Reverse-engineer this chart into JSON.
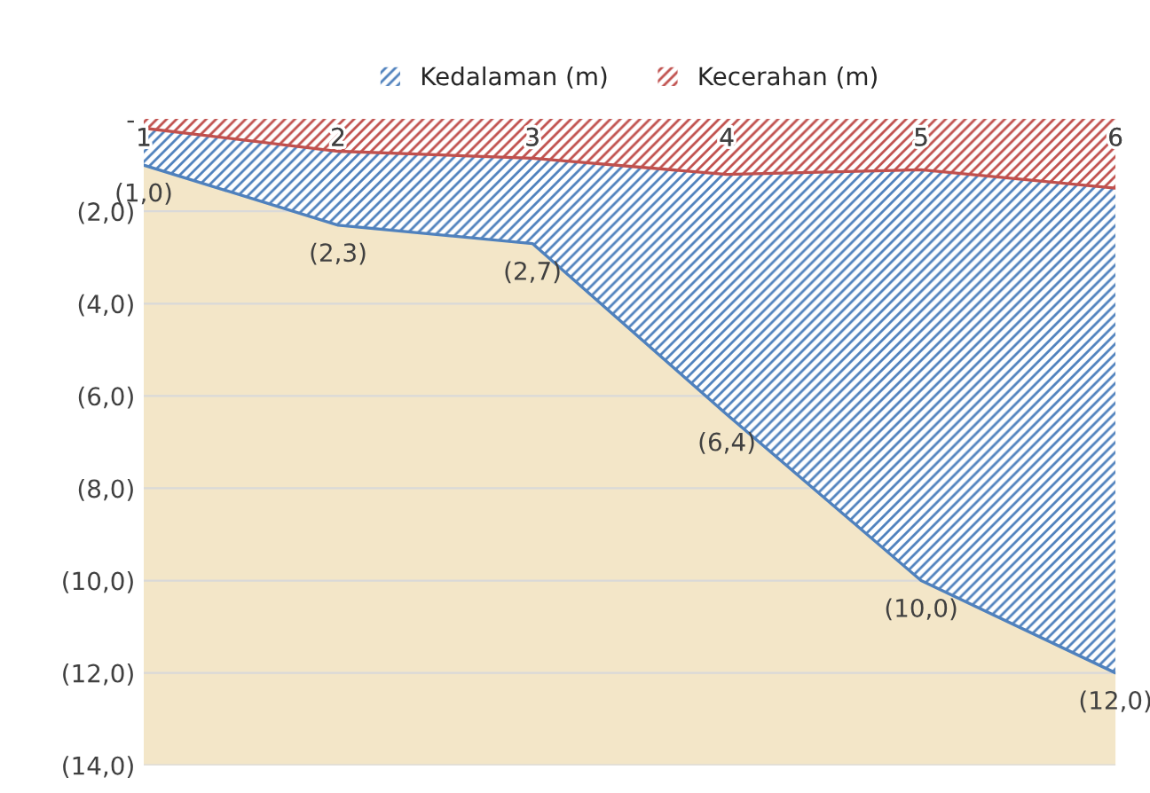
{
  "chart_data": {
    "type": "area",
    "categories": [
      "1",
      "2",
      "3",
      "4",
      "5",
      "6"
    ],
    "series": [
      {
        "name": "Kedalaman (m)",
        "color": "#4f81bd",
        "values": [
          -1.0,
          -2.3,
          -2.7,
          -6.4,
          -10.0,
          -12.0
        ],
        "value_labels": [
          "(1,0)",
          "(2,3)",
          "(2,7)",
          "(6,4)",
          "(10,0)",
          "(12,0)"
        ]
      },
      {
        "name": "Kecerahan (m)",
        "color": "#c0504d",
        "values": [
          -0.2,
          -0.7,
          -0.85,
          -1.2,
          -1.1,
          -1.5
        ]
      }
    ],
    "ylim": [
      -14,
      0
    ],
    "yticks": [
      {
        "value": -14,
        "label": "(14,0)"
      },
      {
        "value": -12,
        "label": "(12,0)"
      },
      {
        "value": -10,
        "label": "(10,0)"
      },
      {
        "value": -8,
        "label": "(8,0)"
      },
      {
        "value": -6,
        "label": "(6,0)"
      },
      {
        "value": -4,
        "label": "(4,0)"
      },
      {
        "value": -2,
        "label": "(2,0)"
      },
      {
        "value": 0,
        "label": "-"
      }
    ],
    "grid": "y",
    "legend": "top"
  }
}
